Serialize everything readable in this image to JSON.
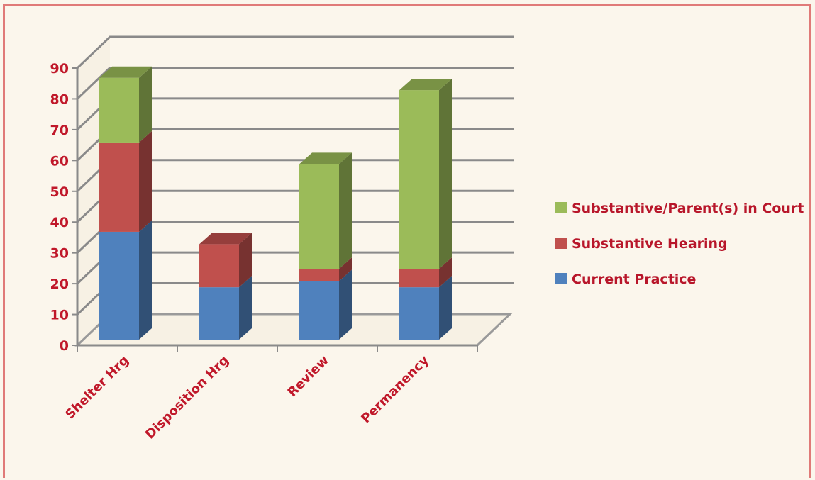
{
  "chart_data": {
    "type": "bar",
    "stacked": true,
    "three_d": true,
    "title": "",
    "xlabel": "",
    "ylabel": "",
    "ylim": [
      0,
      90
    ],
    "yticks": [
      0,
      10,
      20,
      30,
      40,
      50,
      60,
      70,
      80,
      90
    ],
    "grid": true,
    "legend_position": "right",
    "categories": [
      "Shelter Hrg",
      "Disposition Hrg",
      "Review",
      "Permanency"
    ],
    "series": [
      {
        "name": "Current Practice",
        "values": [
          35,
          17,
          19,
          17
        ],
        "color": "#4f81bd"
      },
      {
        "name": "Substantive Hearing",
        "values": [
          29,
          14,
          4,
          6
        ],
        "color": "#c0504d"
      },
      {
        "name": "Substantive/Parent(s) in Court",
        "values": [
          21,
          0,
          34,
          58
        ],
        "color": "#9bbb59"
      }
    ]
  },
  "colors": {
    "label_text": "#c0182a",
    "border": "#e07a78",
    "background": "#fbf6ec"
  }
}
